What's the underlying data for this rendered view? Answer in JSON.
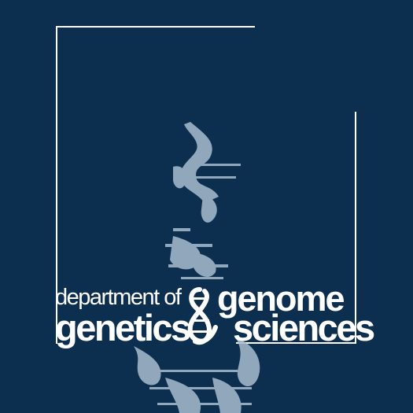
{
  "logo": {
    "line1": "department of",
    "line2": "genetics",
    "line3": "genome",
    "line4": "sciences"
  },
  "colors": {
    "background": "#0d2f4f",
    "foreground": "#ffffff",
    "helix": "#a9bdd0"
  }
}
